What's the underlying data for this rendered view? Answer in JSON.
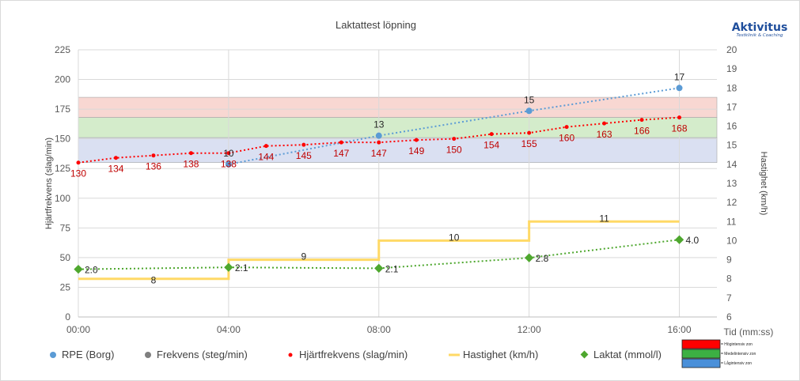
{
  "chart_data": {
    "type": "line",
    "title": "Laktattest löpning",
    "ylabel_left": "Hjärtfrekvens (slag/min)",
    "ylabel_right": "Hastighet (km/h)",
    "xlabel": "Tid (mm:ss)",
    "x_ticks": [
      "00:00",
      "04:00",
      "08:00",
      "12:00",
      "16:00"
    ],
    "y_left_ticks": [
      0,
      25,
      50,
      75,
      100,
      125,
      150,
      175,
      200,
      225
    ],
    "y_right_ticks": [
      6,
      7,
      8,
      9,
      10,
      11,
      12,
      13,
      14,
      15,
      16,
      17,
      18,
      19,
      20
    ],
    "ylim_left": [
      0,
      225
    ],
    "ylim_right": [
      6,
      20
    ],
    "xlim_minutes": [
      0,
      17
    ],
    "zones": [
      {
        "name": "Högintensiv zon",
        "from": 168,
        "to": 185,
        "color": "#f8d7d2"
      },
      {
        "name": "Medelintensiv zon",
        "from": 151,
        "to": 168,
        "color": "#d4eccb"
      },
      {
        "name": "Lågintensiv zon",
        "from": 130,
        "to": 151,
        "color": "#dae0f2"
      }
    ],
    "series": [
      {
        "name": "RPE (Borg)",
        "axis": "right",
        "color": "#5b9bd5",
        "x": [
          4,
          8,
          12,
          16
        ],
        "values": [
          14,
          15.5,
          16.8,
          18
        ],
        "labels": [
          "10",
          "13",
          "15",
          "17"
        ]
      },
      {
        "name": "Frekvens (steg/min)",
        "axis": "left",
        "color": "#7f7f7f",
        "x": [],
        "values": []
      },
      {
        "name": "Hjärtfrekvens (slag/min)",
        "axis": "left",
        "color": "#ff0000",
        "x": [
          0,
          1,
          2,
          3,
          4,
          5,
          6,
          7,
          8,
          9,
          10,
          11,
          12,
          13,
          14,
          15,
          16
        ],
        "values": [
          130,
          134,
          136,
          138,
          138,
          144,
          145,
          147,
          147,
          149,
          150,
          154,
          155,
          160,
          163,
          166,
          168
        ]
      },
      {
        "name": "Hastighet (km/h)",
        "axis": "right",
        "color": "#ffd966",
        "segments": [
          {
            "from": 0,
            "to": 4,
            "value": 8,
            "label": "8"
          },
          {
            "from": 4,
            "to": 8,
            "value": 9,
            "label": "9"
          },
          {
            "from": 8,
            "to": 12,
            "value": 10,
            "label": "10"
          },
          {
            "from": 12,
            "to": 16,
            "value": 11,
            "label": "11"
          }
        ]
      },
      {
        "name": "Laktat (mmol/l)",
        "axis": "right",
        "color": "#4ea72e",
        "x": [
          0,
          4,
          8,
          12,
          16
        ],
        "values": [
          8.5,
          8.6,
          8.55,
          9.1,
          10.05
        ],
        "labels": [
          "2.0",
          "2.1",
          "2.1",
          "2.8",
          "4.0"
        ]
      }
    ],
    "legend": [
      "RPE (Borg)",
      "Frekvens (steg/min)",
      "Hjärtfrekvens (slag/min)",
      "Hastighet (km/h)",
      "Laktat (mmol/l)"
    ],
    "legend_position": "bottom",
    "grid": true
  },
  "zone_legend": [
    {
      "label": "= Högintensiv zon",
      "color": "#ff0000"
    },
    {
      "label": "= Medelintensiv zon",
      "color": "#3cb043"
    },
    {
      "label": "= Lågintensiv zon",
      "color": "#4a90d9"
    }
  ],
  "logo": {
    "main": "Aktivitus",
    "sub": "Testklinik & Coaching"
  }
}
